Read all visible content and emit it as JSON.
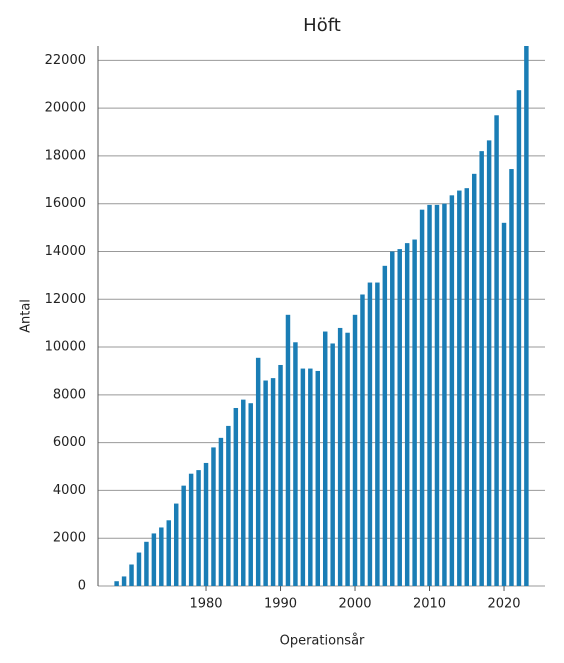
{
  "chart_data": {
    "type": "bar",
    "title": "Höft",
    "x_label": "Operationsår",
    "y_label": "Antal",
    "x": [
      1968,
      1969,
      1970,
      1971,
      1972,
      1973,
      1974,
      1975,
      1976,
      1977,
      1978,
      1979,
      1980,
      1981,
      1982,
      1983,
      1984,
      1985,
      1986,
      1987,
      1988,
      1989,
      1990,
      1991,
      1992,
      1993,
      1994,
      1995,
      1996,
      1997,
      1998,
      1999,
      2000,
      2001,
      2002,
      2003,
      2004,
      2005,
      2006,
      2007,
      2008,
      2009,
      2010,
      2011,
      2012,
      2013,
      2014,
      2015,
      2016,
      2017,
      2018,
      2019,
      2020,
      2021,
      2022,
      2023
    ],
    "values": [
      200,
      400,
      900,
      1400,
      1850,
      2200,
      2450,
      2750,
      3450,
      4200,
      4700,
      4850,
      5150,
      5800,
      6200,
      6700,
      7450,
      7800,
      7650,
      9550,
      8600,
      8700,
      9250,
      11350,
      10200,
      9100,
      9100,
      9000,
      10650,
      10150,
      10800,
      10600,
      11350,
      12200,
      12700,
      12700,
      13400,
      14000,
      14100,
      14350,
      14500,
      15750,
      15950,
      15950,
      16000,
      16350,
      16550,
      16650,
      17250,
      18200,
      18650,
      19700,
      15200,
      17450,
      20750,
      22600
    ],
    "color": "#1a7db5",
    "xlim": [
      1965.5,
      2025.5
    ],
    "xticks": [
      1980,
      1990,
      2000,
      2010,
      2020
    ],
    "ylim": [
      0,
      22600
    ],
    "yticks": [
      0,
      2000,
      4000,
      6000,
      8000,
      10000,
      12000,
      14000,
      16000,
      18000,
      20000,
      22000
    ],
    "grid": true
  }
}
